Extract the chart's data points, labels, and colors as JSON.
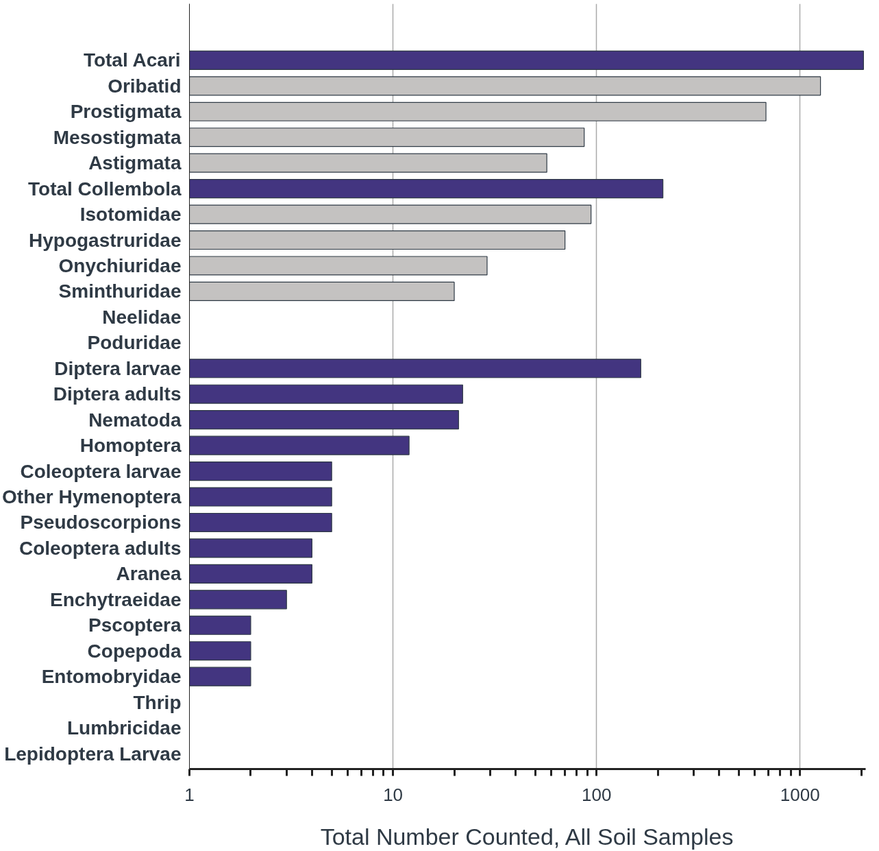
{
  "chart_data": {
    "type": "bar",
    "orientation": "horizontal",
    "log": "x",
    "xlabel": "Total Number Counted, All Soil Samples",
    "categories": [
      "Total Acari",
      "Oribatid",
      "Prostigmata",
      "Mesostigmata",
      "Astigmata",
      "Total Collembola",
      "Isotomidae",
      "Hypogastruridae",
      "Onychiuridae",
      "Sminthuridae",
      "Neelidae",
      "Poduridae",
      "Diptera larvae",
      "Diptera adults",
      "Nematoda",
      "Homoptera",
      "Coleoptera larvae",
      "Other Hymenoptera",
      "Pseudoscorpions",
      "Coleoptera adults",
      "Aranea",
      "Enchytraeidae",
      "Pscoptera",
      "Copepoda",
      "Entomobryidae",
      "Thrip",
      "Lumbricidae",
      "Lepidoptera Larvae"
    ],
    "values": [
      2050,
      1260,
      680,
      87,
      57,
      212,
      94,
      70,
      29,
      20,
      null,
      null,
      165,
      22,
      21,
      12,
      5,
      5,
      5,
      4,
      4,
      3,
      2,
      2,
      2,
      null,
      null,
      null
    ],
    "colors": [
      "#433580",
      "#c4c2c1",
      "#c4c2c1",
      "#c4c2c1",
      "#c4c2c1",
      "#433580",
      "#c4c2c1",
      "#c4c2c1",
      "#c4c2c1",
      "#c4c2c1",
      "#c4c2c1",
      "#c4c2c1",
      "#433580",
      "#433580",
      "#433580",
      "#433580",
      "#433580",
      "#433580",
      "#433580",
      "#433580",
      "#433580",
      "#433580",
      "#433580",
      "#433580",
      "#433580",
      "#433580",
      "#433580",
      "#433580"
    ],
    "xlim": [
      1,
      2100
    ],
    "xticks": [
      1,
      {
        "value": 2,
        "label": null
      },
      {
        "value": 3,
        "label": null
      },
      {
        "value": 4,
        "label": null
      },
      {
        "value": 5,
        "label": null
      },
      {
        "value": 6,
        "label": null
      },
      {
        "value": 7,
        "label": null
      },
      {
        "value": 8,
        "label": null
      },
      {
        "value": 9,
        "label": null
      },
      10,
      {
        "value": 20,
        "label": null
      },
      {
        "value": 30,
        "label": null
      },
      {
        "value": 40,
        "label": null
      },
      {
        "value": 50,
        "label": null
      },
      {
        "value": 60,
        "label": null
      },
      {
        "value": 70,
        "label": null
      },
      {
        "value": 80,
        "label": null
      },
      {
        "value": 90,
        "label": null
      },
      100,
      {
        "value": 200,
        "label": null
      },
      {
        "value": 300,
        "label": null
      },
      {
        "value": 400,
        "label": null
      },
      {
        "value": 500,
        "label": null
      },
      {
        "value": 600,
        "label": null
      },
      {
        "value": 700,
        "label": null
      },
      {
        "value": 800,
        "label": null
      },
      {
        "value": 900,
        "label": null
      },
      1000,
      {
        "value": 2000,
        "label": null
      }
    ],
    "grid": "x"
  }
}
